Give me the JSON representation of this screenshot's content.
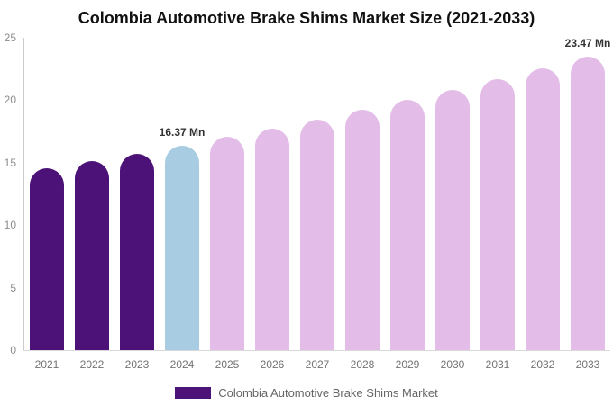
{
  "title": "Colombia Automotive Brake Shims Market Size (2021-2033)",
  "legend": {
    "label": "Colombia Automotive Brake Shims Market",
    "swatch_color": "#4C1277"
  },
  "colors": {
    "historical": "#4C1277",
    "current": "#A8CDE2",
    "forecast": "#E3BDE8",
    "axis_line": "#cccccc",
    "y_tick_text": "#8c8c8c",
    "x_tick_text": "#737373",
    "value_label_text": "#333333",
    "title_text": "#111111",
    "background": "#ffffff"
  },
  "chart_data": {
    "type": "bar",
    "title": "Colombia Automotive Brake Shims Market Size (2021-2033)",
    "xlabel": "",
    "ylabel": "",
    "unit": "Mn",
    "categories": [
      "2021",
      "2022",
      "2023",
      "2024",
      "2025",
      "2026",
      "2027",
      "2028",
      "2029",
      "2030",
      "2031",
      "2032",
      "2033"
    ],
    "values": [
      14.52,
      15.11,
      15.73,
      16.37,
      17.04,
      17.74,
      18.47,
      19.22,
      20.01,
      20.83,
      21.68,
      22.57,
      23.47
    ],
    "bar_roles": [
      "historical",
      "historical",
      "historical",
      "current",
      "forecast",
      "forecast",
      "forecast",
      "forecast",
      "forecast",
      "forecast",
      "forecast",
      "forecast",
      "forecast"
    ],
    "labeled_points": [
      {
        "index": 3,
        "text": "16.37 Mn"
      },
      {
        "index": 12,
        "text": "23.47 Mn"
      }
    ],
    "y_ticks": [
      0,
      5,
      10,
      15,
      20,
      25
    ],
    "ylim": [
      0,
      25
    ],
    "grid": false,
    "legend_entries": [
      "Colombia Automotive Brake Shims Market"
    ],
    "legend_position": "bottom"
  }
}
